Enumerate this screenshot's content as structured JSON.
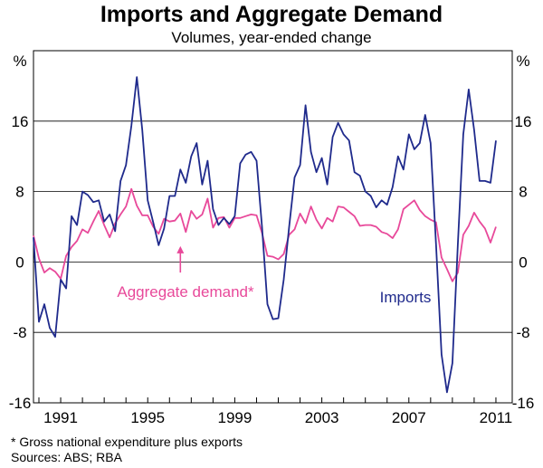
{
  "chart_data": {
    "type": "line",
    "title": "Imports and Aggregate Demand",
    "subtitle": "Volumes, year-ended change",
    "ylabel_left": "%",
    "ylabel_right": "%",
    "ylim": [
      -16,
      24
    ],
    "yticks": [
      -16,
      -8,
      0,
      8,
      16
    ],
    "xlim": [
      1989.75,
      2011.75
    ],
    "xticks": [
      1991,
      1995,
      1999,
      2003,
      2007,
      2011
    ],
    "x_start": 1989.75,
    "x_step": 0.25,
    "series": [
      {
        "name": "Imports",
        "color": "#1f2a8c",
        "label": "Imports",
        "values": [
          2.8,
          -6.8,
          -4.8,
          -7.5,
          -8.5,
          -2.0,
          -3.0,
          5.2,
          4.2,
          8.0,
          7.6,
          6.8,
          7.0,
          4.6,
          5.4,
          3.5,
          9.2,
          11.0,
          15.5,
          21.0,
          15.0,
          7.0,
          4.5,
          1.9,
          3.8,
          7.5,
          7.5,
          10.5,
          9.0,
          12.0,
          13.5,
          8.8,
          11.5,
          6.0,
          4.2,
          5.0,
          4.3,
          5.2,
          11.2,
          12.2,
          12.5,
          11.5,
          4.0,
          -4.8,
          -6.5,
          -6.4,
          -2.0,
          4.0,
          9.6,
          11.0,
          17.8,
          12.5,
          10.2,
          11.8,
          8.8,
          14.2,
          15.8,
          14.5,
          13.8,
          10.2,
          9.8,
          8.0,
          7.5,
          6.2,
          7.0,
          6.5,
          8.5,
          12.0,
          10.5,
          14.5,
          12.8,
          13.5,
          16.7,
          13.5,
          2.0,
          -10.5,
          -14.8,
          -11.5,
          2.0,
          14.5,
          19.6,
          15.0,
          9.2,
          9.2,
          9.0,
          13.8
        ]
      },
      {
        "name": "Aggregate demand*",
        "color": "#e8499a",
        "label": "Aggregate demand*",
        "values": [
          3.0,
          0.4,
          -1.2,
          -0.7,
          -1.1,
          -1.9,
          0.7,
          1.7,
          2.4,
          3.7,
          3.3,
          4.6,
          5.8,
          4.2,
          2.8,
          4.4,
          5.4,
          6.3,
          8.3,
          6.4,
          5.3,
          5.3,
          4.0,
          3.2,
          4.9,
          4.6,
          4.7,
          5.5,
          3.4,
          5.8,
          4.9,
          5.4,
          7.2,
          3.9,
          5.0,
          5.1,
          3.9,
          5.0,
          5.0,
          5.2,
          5.4,
          5.3,
          3.3,
          0.7,
          0.6,
          0.3,
          0.9,
          3.1,
          3.7,
          5.5,
          4.4,
          6.3,
          4.8,
          3.8,
          5.0,
          4.6,
          6.3,
          6.2,
          5.7,
          5.2,
          4.1,
          4.2,
          4.2,
          4.0,
          3.4,
          3.2,
          2.7,
          3.7,
          6.0,
          6.5,
          7.0,
          5.9,
          5.2,
          4.8,
          4.5,
          0.5,
          -0.8,
          -2.2,
          -1.2,
          3.1,
          4.1,
          5.6,
          4.6,
          3.8,
          2.2,
          4.0
        ]
      }
    ],
    "annotations": {
      "aggregate_label": "Aggregate demand*",
      "imports_label": "Imports",
      "arrow_x": 1996.5,
      "arrow_from_y": -1.2,
      "arrow_to_y": 1.8
    },
    "footnote": "*     Gross national expenditure plus exports",
    "sources": "Sources: ABS; RBA"
  }
}
